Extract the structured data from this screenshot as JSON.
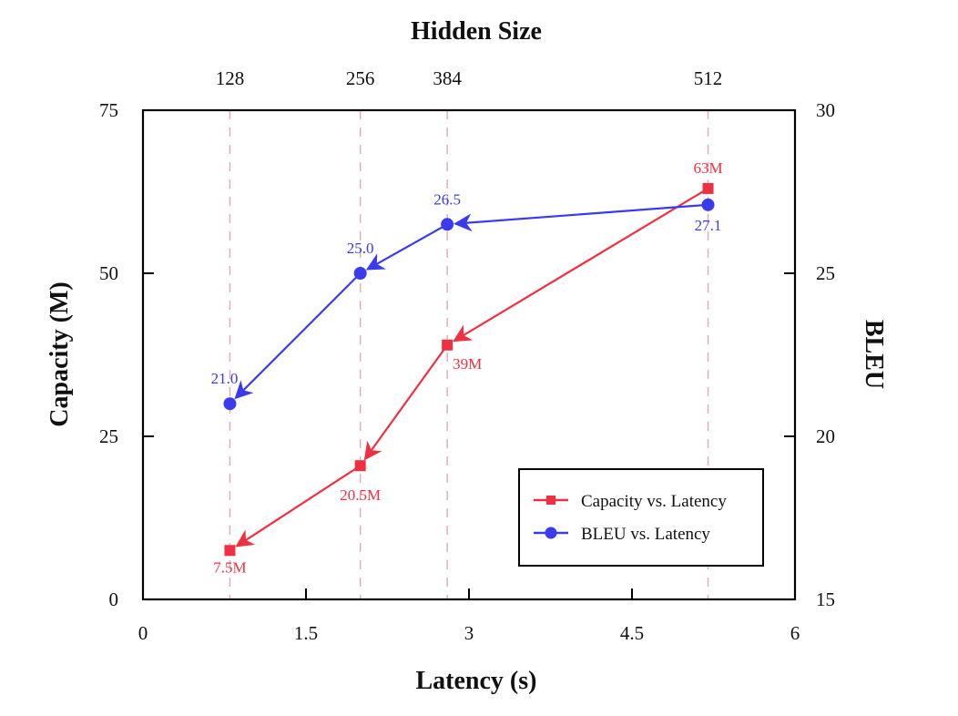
{
  "chart_data": {
    "type": "line",
    "title": "Hidden Size",
    "xlabel": "Latency (s)",
    "ylabel_left": "Capacity (M)",
    "ylabel_right": "BLEU",
    "xlim": [
      0,
      6
    ],
    "ylim_left": [
      0,
      75
    ],
    "ylim_right": [
      15,
      30
    ],
    "x_ticks": [
      "0",
      "1.5",
      "3",
      "4.5",
      "6"
    ],
    "y_left_ticks": [
      "0",
      "25",
      "50",
      "75"
    ],
    "y_right_ticks": [
      "15",
      "20",
      "25",
      "30"
    ],
    "top_axis": {
      "ticks": [
        {
          "x": 0.8,
          "label": "128"
        },
        {
          "x": 2.0,
          "label": "256"
        },
        {
          "x": 2.8,
          "label": "384"
        },
        {
          "x": 5.2,
          "label": "512"
        }
      ]
    },
    "series": [
      {
        "name": "Capacity vs. Latency",
        "axis": "left",
        "color": "#f03040",
        "marker": "square",
        "points": [
          {
            "x": 0.8,
            "y": 7.5,
            "label": "7.5M"
          },
          {
            "x": 2.0,
            "y": 20.5,
            "label": "20.5M"
          },
          {
            "x": 2.8,
            "y": 39,
            "label": "39M"
          },
          {
            "x": 5.2,
            "y": 63,
            "label": "63M"
          }
        ]
      },
      {
        "name": "BLEU vs. Latency",
        "axis": "right",
        "color": "#3a3af0",
        "marker": "circle",
        "points": [
          {
            "x": 0.8,
            "y": 21.0,
            "label": "21.0"
          },
          {
            "x": 2.0,
            "y": 25.0,
            "label": "25.0"
          },
          {
            "x": 2.8,
            "y": 26.5,
            "label": "26.5"
          },
          {
            "x": 5.2,
            "y": 27.1,
            "label": "27.1"
          }
        ]
      }
    ],
    "grid": "vertical dashed at hidden-size ticks",
    "legend": "bottom-right"
  }
}
